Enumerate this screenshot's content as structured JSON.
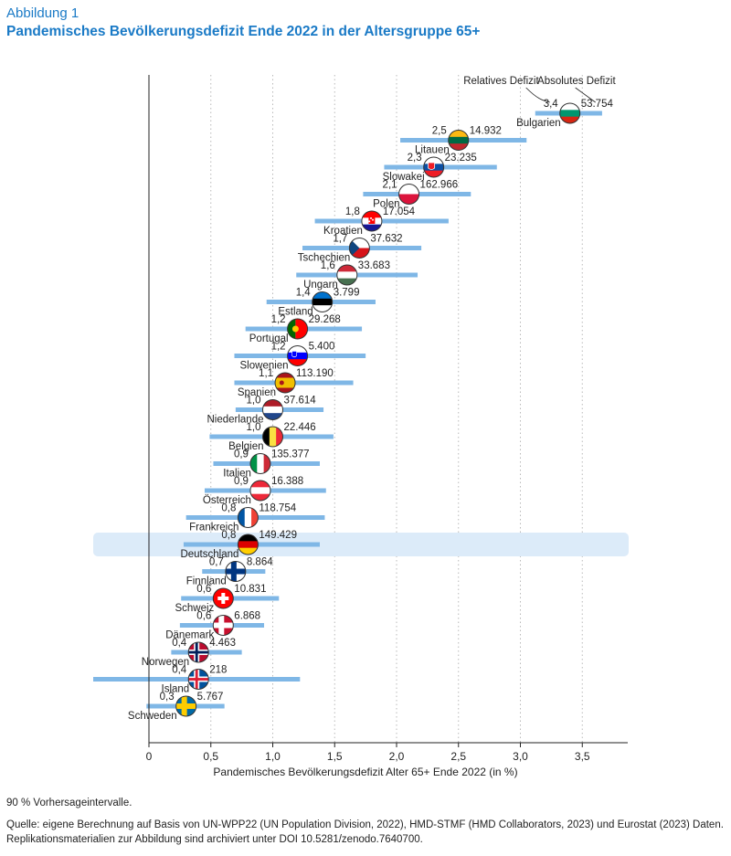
{
  "figure_label": "Abbildung 1",
  "title": "Pandemisches Bevölkerungsdefizit Ende 2022 in der Altersgruppe 65+",
  "note": "90 % Vorhersageintervalle.",
  "source": "Quelle: eigene Berechnung auf Basis von UN-WPP22 (UN Population Division, 2022), HMD-STMF (HMD Collaborators, 2023) und Eurostat (2023) Daten. Replikationsmaterialien zur Abbildung sind archiviert unter DOI 10.5281/zenodo.7640700.",
  "colors": {
    "accent": "#1a7ac6",
    "interval": "#7fb7e6",
    "highlight": "#dcebf9"
  },
  "chart_data": {
    "type": "scatter",
    "xlabel": "Pandemisches Bevölkerungsdefizit Alter 65+ Ende 2022 (in %)",
    "ylabel": "",
    "xlim": [
      0,
      3.9
    ],
    "xticks": [
      0,
      0.5,
      1.0,
      1.5,
      2.0,
      2.5,
      3.0,
      3.5
    ],
    "xtick_labels": [
      "0",
      "0,5",
      "1,0",
      "1,5",
      "2,0",
      "2,5",
      "3,0",
      "3,5"
    ],
    "grid": "vertical dotted",
    "legend": {
      "relative_label": "Relatives Defizit",
      "absolute_label": "Absolutes Defizit",
      "placement": "top-right"
    },
    "highlight": "Deutschland",
    "countries": [
      {
        "name": "Bulgarien",
        "value": 3.4,
        "value_label": "3,4",
        "absolute": "53.754",
        "lo": 3.12,
        "hi": 3.66,
        "flag": [
          "#ffffff",
          "#00966e",
          "#d62612"
        ]
      },
      {
        "name": "Litauen",
        "value": 2.5,
        "value_label": "2,5",
        "absolute": "14.932",
        "lo": 2.03,
        "hi": 3.05,
        "flag": [
          "#fdb913",
          "#006a44",
          "#c1272d"
        ]
      },
      {
        "name": "Slowakei",
        "value": 2.3,
        "value_label": "2,3",
        "absolute": "23.235",
        "lo": 1.9,
        "hi": 2.81,
        "flag": [
          "#ffffff",
          "#0b4ea2",
          "#ee1c25"
        ]
      },
      {
        "name": "Polen",
        "value": 2.1,
        "value_label": "2,1",
        "absolute": "162.966",
        "lo": 1.73,
        "hi": 2.6,
        "flag": [
          "#ffffff",
          "#dc143c"
        ]
      },
      {
        "name": "Kroatien",
        "value": 1.8,
        "value_label": "1,8",
        "absolute": "17.054",
        "lo": 1.34,
        "hi": 2.42,
        "flag": [
          "#ff0000",
          "#ffffff",
          "#171796"
        ]
      },
      {
        "name": "Tschechien",
        "value": 1.7,
        "value_label": "1,7",
        "absolute": "37.632",
        "lo": 1.24,
        "hi": 2.2,
        "flag": [
          "#ffffff",
          "#d7141a",
          "#11457e"
        ]
      },
      {
        "name": "Ungarn",
        "value": 1.6,
        "value_label": "1,6",
        "absolute": "33.683",
        "lo": 1.19,
        "hi": 2.17,
        "flag": [
          "#ce2939",
          "#ffffff",
          "#477050"
        ]
      },
      {
        "name": "Estland",
        "value": 1.4,
        "value_label": "1,4",
        "absolute": "3.799",
        "lo": 0.95,
        "hi": 1.83,
        "flag": [
          "#0072ce",
          "#000000",
          "#ffffff"
        ]
      },
      {
        "name": "Portugal",
        "value": 1.2,
        "value_label": "1,2",
        "absolute": "29.268",
        "lo": 0.78,
        "hi": 1.72,
        "flag": [
          "#006600",
          "#ff0000"
        ]
      },
      {
        "name": "Slowenien",
        "value": 1.2,
        "value_label": "1,2",
        "absolute": "5.400",
        "lo": 0.69,
        "hi": 1.75,
        "flag": [
          "#ffffff",
          "#0000ff",
          "#ff0000"
        ]
      },
      {
        "name": "Spanien",
        "value": 1.1,
        "value_label": "1,1",
        "absolute": "113.190",
        "lo": 0.69,
        "hi": 1.65,
        "flag": [
          "#aa151b",
          "#f1bf00",
          "#aa151b"
        ]
      },
      {
        "name": "Niederlande",
        "value": 1.0,
        "value_label": "1,0",
        "absolute": "37.614",
        "lo": 0.7,
        "hi": 1.41,
        "flag": [
          "#ae1c28",
          "#ffffff",
          "#21468b"
        ]
      },
      {
        "name": "Belgien",
        "value": 1.0,
        "value_label": "1,0",
        "absolute": "22.446",
        "lo": 0.49,
        "hi": 1.49,
        "flag": [
          "#000000",
          "#fae042",
          "#ed2939"
        ]
      },
      {
        "name": "Italien",
        "value": 0.9,
        "value_label": "0,9",
        "absolute": "135.377",
        "lo": 0.52,
        "hi": 1.38,
        "flag": [
          "#009246",
          "#ffffff",
          "#ce2b37"
        ]
      },
      {
        "name": "Österreich",
        "value": 0.9,
        "value_label": "0,9",
        "absolute": "16.388",
        "lo": 0.45,
        "hi": 1.43,
        "flag": [
          "#ed2939",
          "#ffffff",
          "#ed2939"
        ]
      },
      {
        "name": "Frankreich",
        "value": 0.8,
        "value_label": "0,8",
        "absolute": "118.754",
        "lo": 0.3,
        "hi": 1.42,
        "flag": [
          "#0055a4",
          "#ffffff",
          "#ef4135"
        ]
      },
      {
        "name": "Deutschland",
        "value": 0.8,
        "value_label": "0,8",
        "absolute": "149.429",
        "lo": 0.28,
        "hi": 1.38,
        "flag": [
          "#000000",
          "#dd0000",
          "#ffce00"
        ]
      },
      {
        "name": "Finnland",
        "value": 0.7,
        "value_label": "0,7",
        "absolute": "8.864",
        "lo": 0.43,
        "hi": 0.94,
        "flag": [
          "#ffffff",
          "#003580"
        ]
      },
      {
        "name": "Schweiz",
        "value": 0.6,
        "value_label": "0,6",
        "absolute": "10.831",
        "lo": 0.26,
        "hi": 1.05,
        "flag": [
          "#ff0000",
          "#ffffff"
        ]
      },
      {
        "name": "Dänemark",
        "value": 0.6,
        "value_label": "0,6",
        "absolute": "6.868",
        "lo": 0.25,
        "hi": 0.93,
        "flag": [
          "#c8102e",
          "#ffffff"
        ]
      },
      {
        "name": "Norwegen",
        "value": 0.4,
        "value_label": "0,4",
        "absolute": "4.463",
        "lo": 0.18,
        "hi": 0.75,
        "flag": [
          "#ba0c2f",
          "#ffffff",
          "#00205b"
        ]
      },
      {
        "name": "Island",
        "value": 0.4,
        "value_label": "0,4",
        "absolute": "218",
        "lo": -0.45,
        "hi": 1.22,
        "flag": [
          "#02529c",
          "#ffffff",
          "#dc1e35"
        ]
      },
      {
        "name": "Schweden",
        "value": 0.3,
        "value_label": "0,3",
        "absolute": "5.767",
        "lo": -0.02,
        "hi": 0.61,
        "flag": [
          "#006aa7",
          "#fecc00"
        ]
      }
    ]
  }
}
